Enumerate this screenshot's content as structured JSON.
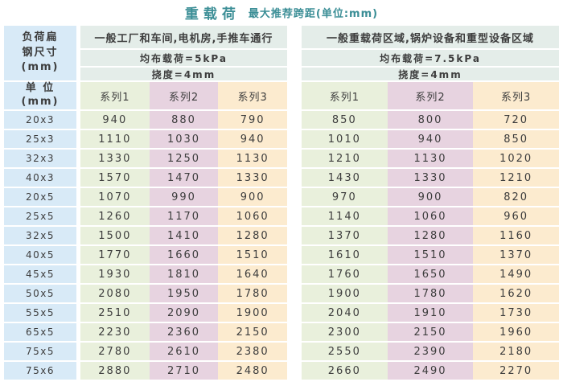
{
  "title": {
    "main": "重载荷",
    "sub": "最大推荐跨距(单位:mm)"
  },
  "left_header": {
    "lines": [
      "负荷扁",
      "钢尺寸",
      "(mm)"
    ],
    "unit_lines": [
      "单 位",
      "(mm)"
    ]
  },
  "groups": [
    {
      "title": "一般工厂和车间,电机房,手推车通行",
      "load": "均布载荷=5kPa",
      "deflection": "挠度=4mm",
      "series": [
        "系列1",
        "系列2",
        "系列3"
      ]
    },
    {
      "title": "一般重载荷区域,锅炉设备和重型设备区域",
      "load": "均布载荷=7.5kPa",
      "deflection": "挠度=4mm",
      "series": [
        "系列1",
        "系列2",
        "系列3"
      ]
    }
  ],
  "rows": [
    {
      "size": "20x3",
      "g1": [
        "940",
        "880",
        "790"
      ],
      "g2": [
        "850",
        "800",
        "720"
      ]
    },
    {
      "size": "25x3",
      "g1": [
        "1110",
        "1030",
        "940"
      ],
      "g2": [
        "1010",
        "940",
        "850"
      ]
    },
    {
      "size": "32x3",
      "g1": [
        "1330",
        "1250",
        "1130"
      ],
      "g2": [
        "1210",
        "1130",
        "1020"
      ]
    },
    {
      "size": "40x3",
      "g1": [
        "1570",
        "1470",
        "1330"
      ],
      "g2": [
        "1430",
        "1330",
        "1210"
      ]
    },
    {
      "size": "20x5",
      "g1": [
        "1070",
        "990",
        "900"
      ],
      "g2": [
        "970",
        "900",
        "820"
      ]
    },
    {
      "size": "25x5",
      "g1": [
        "1260",
        "1170",
        "1060"
      ],
      "g2": [
        "1140",
        "1060",
        "960"
      ]
    },
    {
      "size": "32x5",
      "g1": [
        "1500",
        "1410",
        "1280"
      ],
      "g2": [
        "1370",
        "1280",
        "1160"
      ]
    },
    {
      "size": "40x5",
      "g1": [
        "1770",
        "1660",
        "1510"
      ],
      "g2": [
        "1610",
        "1510",
        "1370"
      ]
    },
    {
      "size": "45x5",
      "g1": [
        "1930",
        "1810",
        "1640"
      ],
      "g2": [
        "1760",
        "1650",
        "1490"
      ]
    },
    {
      "size": "50x5",
      "g1": [
        "2080",
        "1950",
        "1780"
      ],
      "g2": [
        "1900",
        "1780",
        "1620"
      ]
    },
    {
      "size": "55x5",
      "g1": [
        "2510",
        "2090",
        "1900"
      ],
      "g2": [
        "2040",
        "1910",
        "1730"
      ]
    },
    {
      "size": "65x5",
      "g1": [
        "2230",
        "2360",
        "2150"
      ],
      "g2": [
        "2300",
        "2150",
        "1960"
      ]
    },
    {
      "size": "75x5",
      "g1": [
        "2780",
        "2610",
        "2380"
      ],
      "g2": [
        "2550",
        "2390",
        "2180"
      ]
    },
    {
      "size": "75x6",
      "g1": [
        "2880",
        "2710",
        "2480"
      ],
      "g2": [
        "2660",
        "2490",
        "2270"
      ]
    }
  ],
  "colors": {
    "accent_teal": "#3b8e96",
    "label_blue": "#d8eaf7",
    "header_gray_green": "#e4ede9",
    "series1_green": "#e9f0dc",
    "series2_pink": "#e7d3e0",
    "series3_peach": "#fcebcf",
    "text": "#3d3d3d"
  }
}
